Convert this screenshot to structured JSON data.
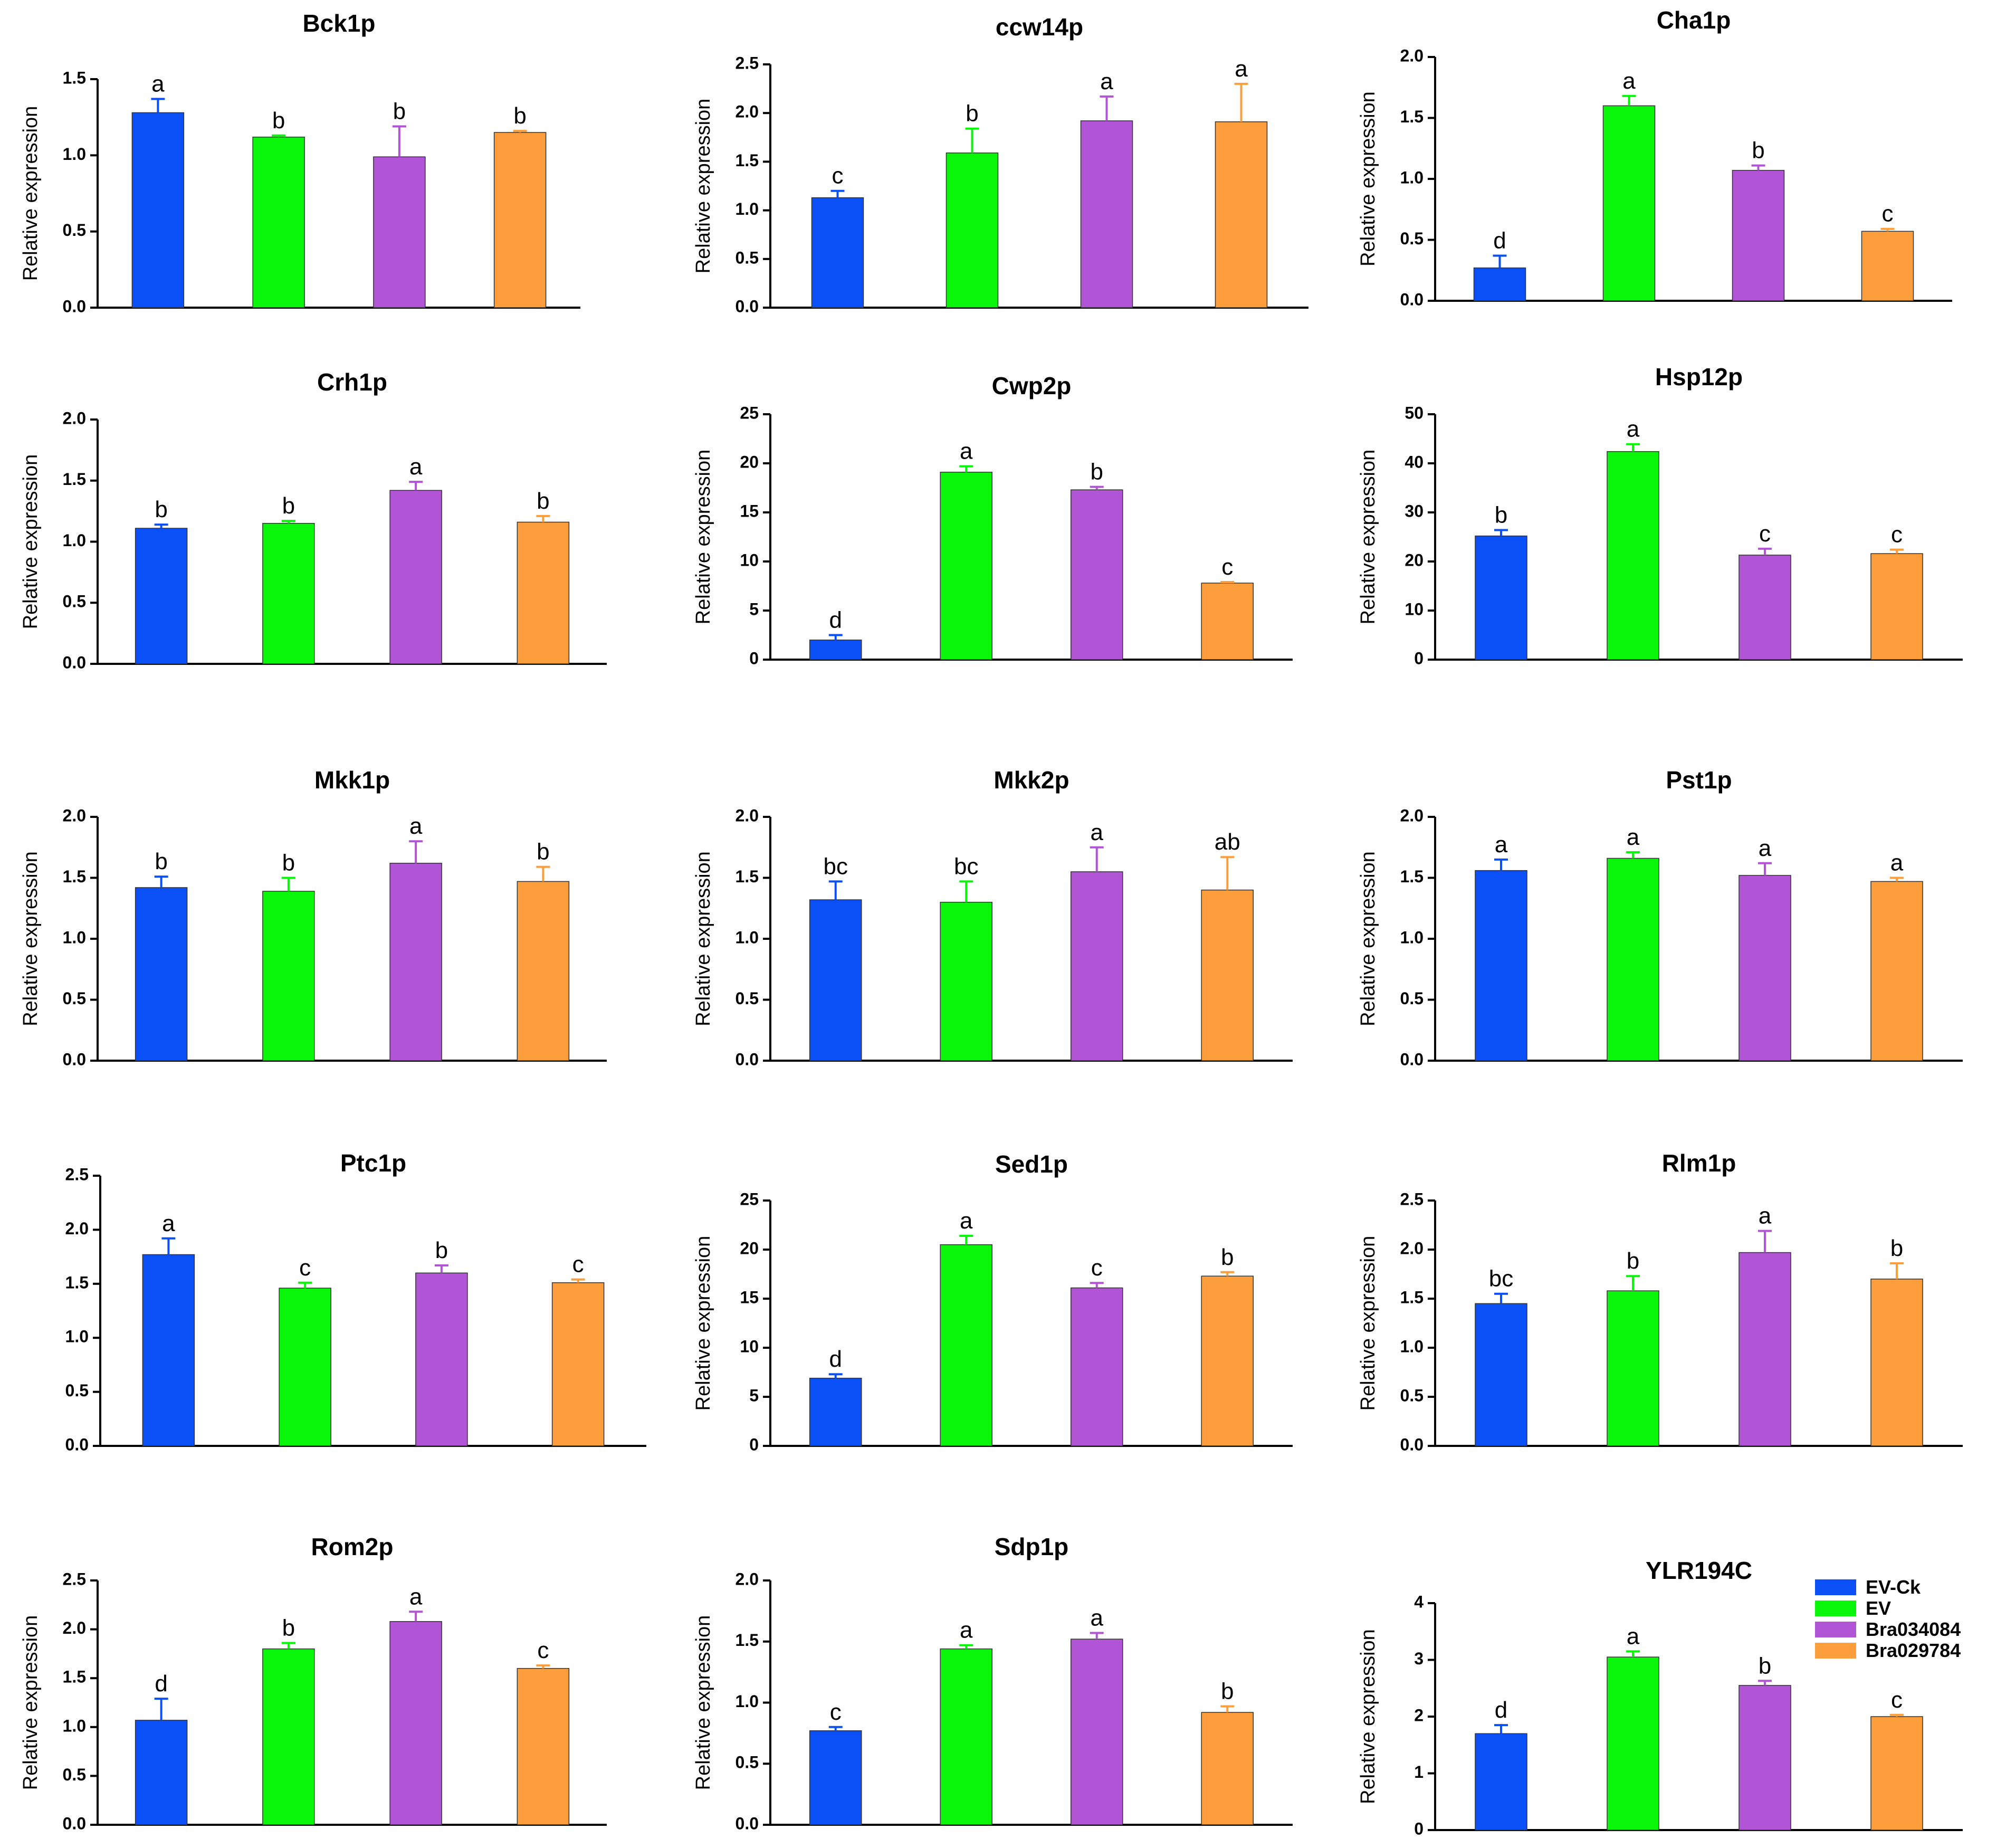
{
  "groups": [
    "EV-Ck",
    "EV",
    "Bra034084",
    "Bra029784"
  ],
  "colors": [
    "#0b4ff7",
    "#09f509",
    "#b155d6",
    "#fc9e3b"
  ],
  "legend": {
    "item_0": "EV-Ck",
    "item_1": "EV",
    "item_2": "Bra034084",
    "item_3": "Bra029784"
  },
  "chart_data": [
    {
      "type": "bar",
      "title": "Bck1p",
      "ylabel": "Relative expression",
      "ylim": [
        0,
        1.5
      ],
      "ticks": [
        "0.0",
        "0.5",
        "1.0",
        "1.5"
      ],
      "categories": [
        "EV-Ck",
        "EV",
        "Bra034084",
        "Bra029784"
      ],
      "values": [
        1.28,
        1.12,
        0.99,
        1.15
      ],
      "errors": [
        0.09,
        0.01,
        0.2,
        0.01
      ],
      "letters": [
        "a",
        "b",
        "b",
        "b"
      ]
    },
    {
      "type": "bar",
      "title": "ccw14p",
      "ylabel": "Relative expression",
      "ylim": [
        0,
        2.5
      ],
      "ticks": [
        "0.0",
        "0.5",
        "1.0",
        "1.5",
        "2.0",
        "2.5"
      ],
      "categories": [
        "EV-Ck",
        "EV",
        "Bra034084",
        "Bra029784"
      ],
      "values": [
        1.13,
        1.59,
        1.92,
        1.91
      ],
      "errors": [
        0.07,
        0.25,
        0.25,
        0.39
      ],
      "letters": [
        "c",
        "b",
        "a",
        "a"
      ]
    },
    {
      "type": "bar",
      "title": "Cha1p",
      "ylabel": "Relative expression",
      "ylim": [
        0,
        2.0
      ],
      "ticks": [
        "0.0",
        "0.5",
        "1.0",
        "1.5",
        "2.0"
      ],
      "categories": [
        "EV-Ck",
        "EV",
        "Bra034084",
        "Bra029784"
      ],
      "values": [
        0.27,
        1.6,
        1.07,
        0.57
      ],
      "errors": [
        0.1,
        0.08,
        0.04,
        0.02
      ],
      "letters": [
        "d",
        "a",
        "b",
        "c"
      ]
    },
    {
      "type": "bar",
      "title": "Crh1p",
      "ylabel": "Relative expression",
      "ylim": [
        0,
        2.0
      ],
      "ticks": [
        "0.0",
        "0.5",
        "1.0",
        "1.5",
        "2.0"
      ],
      "categories": [
        "EV-Ck",
        "EV",
        "Bra034084",
        "Bra029784"
      ],
      "values": [
        1.11,
        1.15,
        1.42,
        1.16
      ],
      "errors": [
        0.03,
        0.02,
        0.07,
        0.05
      ],
      "letters": [
        "b",
        "b",
        "a",
        "b"
      ]
    },
    {
      "type": "bar",
      "title": "Cwp2p",
      "ylabel": "Relative expression",
      "ylim": [
        0,
        25
      ],
      "ticks": [
        "0",
        "5",
        "10",
        "15",
        "20",
        "25"
      ],
      "categories": [
        "EV-Ck",
        "EV",
        "Bra034084",
        "Bra029784"
      ],
      "values": [
        2.0,
        19.1,
        17.3,
        7.8
      ],
      "errors": [
        0.5,
        0.6,
        0.3,
        0.1
      ],
      "letters": [
        "d",
        "a",
        "b",
        "c"
      ]
    },
    {
      "type": "bar",
      "title": "Hsp12p",
      "ylabel": "Relative expression",
      "ylim": [
        0,
        50
      ],
      "ticks": [
        "0",
        "10",
        "20",
        "30",
        "40",
        "50"
      ],
      "categories": [
        "EV-Ck",
        "EV",
        "Bra034084",
        "Bra029784"
      ],
      "values": [
        25.2,
        42.4,
        21.3,
        21.6
      ],
      "errors": [
        1.2,
        1.5,
        1.3,
        0.8
      ],
      "letters": [
        "b",
        "a",
        "c",
        "c"
      ]
    },
    {
      "type": "bar",
      "title": "Mkk1p",
      "ylabel": "Relative expression",
      "ylim": [
        0,
        2.0
      ],
      "ticks": [
        "0.0",
        "0.5",
        "1.0",
        "1.5",
        "2.0"
      ],
      "categories": [
        "EV-Ck",
        "EV",
        "Bra034084",
        "Bra029784"
      ],
      "values": [
        1.42,
        1.39,
        1.62,
        1.47
      ],
      "errors": [
        0.09,
        0.11,
        0.18,
        0.12
      ],
      "letters": [
        "b",
        "b",
        "a",
        "b"
      ]
    },
    {
      "type": "bar",
      "title": "Mkk2p",
      "ylabel": "Relative expression",
      "ylim": [
        0,
        2.0
      ],
      "ticks": [
        "0.0",
        "0.5",
        "1.0",
        "1.5",
        "2.0"
      ],
      "categories": [
        "EV-Ck",
        "EV",
        "Bra034084",
        "Bra029784"
      ],
      "values": [
        1.32,
        1.3,
        1.55,
        1.4
      ],
      "errors": [
        0.15,
        0.17,
        0.2,
        0.27
      ],
      "letters": [
        "bc",
        "bc",
        "a",
        "ab"
      ]
    },
    {
      "type": "bar",
      "title": "Pst1p",
      "ylabel": "Relative expression",
      "ylim": [
        0,
        2.0
      ],
      "ticks": [
        "0.0",
        "0.5",
        "1.0",
        "1.5",
        "2.0"
      ],
      "categories": [
        "EV-Ck",
        "EV",
        "Bra034084",
        "Bra029784"
      ],
      "values": [
        1.56,
        1.66,
        1.52,
        1.47
      ],
      "errors": [
        0.09,
        0.05,
        0.1,
        0.03
      ],
      "letters": [
        "a",
        "a",
        "a",
        "a"
      ]
    },
    {
      "type": "bar",
      "title": "Ptc1p",
      "ylabel": "",
      "ylim": [
        0,
        2.5
      ],
      "ticks": [
        "0.0",
        "0.5",
        "1.0",
        "1.5",
        "2.0",
        "2.5"
      ],
      "categories": [
        "EV-Ck",
        "EV",
        "Bra034084",
        "Bra029784"
      ],
      "values": [
        1.77,
        1.46,
        1.6,
        1.51
      ],
      "errors": [
        0.15,
        0.05,
        0.07,
        0.03
      ],
      "letters": [
        "a",
        "c",
        "b",
        "c"
      ]
    },
    {
      "type": "bar",
      "title": "Sed1p",
      "ylabel": "Relative expression",
      "ylim": [
        0,
        25
      ],
      "ticks": [
        "0",
        "5",
        "10",
        "15",
        "20",
        "25"
      ],
      "categories": [
        "EV-Ck",
        "EV",
        "Bra034084",
        "Bra029784"
      ],
      "values": [
        6.9,
        20.5,
        16.1,
        17.3
      ],
      "errors": [
        0.4,
        0.9,
        0.5,
        0.4
      ],
      "letters": [
        "d",
        "a",
        "c",
        "b"
      ]
    },
    {
      "type": "bar",
      "title": "Rlm1p",
      "ylabel": "Relative expression",
      "ylim": [
        0,
        2.5
      ],
      "ticks": [
        "0.0",
        "0.5",
        "1.0",
        "1.5",
        "2.0",
        "2.5"
      ],
      "categories": [
        "EV-Ck",
        "EV",
        "Bra034084",
        "Bra029784"
      ],
      "values": [
        1.45,
        1.58,
        1.97,
        1.7
      ],
      "errors": [
        0.1,
        0.15,
        0.22,
        0.16
      ],
      "letters": [
        "bc",
        "b",
        "a",
        "b"
      ]
    },
    {
      "type": "bar",
      "title": "Rom2p",
      "ylabel": "Relative expression",
      "ylim": [
        0,
        2.5
      ],
      "ticks": [
        "0.0",
        "0.5",
        "1.0",
        "1.5",
        "2.0",
        "2.5"
      ],
      "categories": [
        "EV-Ck",
        "EV",
        "Bra034084",
        "Bra029784"
      ],
      "values": [
        1.07,
        1.8,
        2.08,
        1.6
      ],
      "errors": [
        0.22,
        0.06,
        0.1,
        0.03
      ],
      "letters": [
        "d",
        "b",
        "a",
        "c"
      ]
    },
    {
      "type": "bar",
      "title": "Sdp1p",
      "ylabel": "Relative expression",
      "ylim": [
        0,
        2.0
      ],
      "ticks": [
        "0.0",
        "0.5",
        "1.0",
        "1.5",
        "2.0"
      ],
      "categories": [
        "EV-Ck",
        "EV",
        "Bra034084",
        "Bra029784"
      ],
      "values": [
        0.77,
        1.44,
        1.52,
        0.92
      ],
      "errors": [
        0.03,
        0.03,
        0.05,
        0.05
      ],
      "letters": [
        "c",
        "a",
        "a",
        "b"
      ]
    },
    {
      "type": "bar",
      "title": "YLR194C",
      "ylabel": "Relative expression",
      "ylim": [
        0,
        4
      ],
      "ticks": [
        "0",
        "1",
        "2",
        "3",
        "4"
      ],
      "categories": [
        "EV-Ck",
        "EV",
        "Bra034084",
        "Bra029784"
      ],
      "values": [
        1.7,
        3.05,
        2.55,
        2.0
      ],
      "errors": [
        0.15,
        0.1,
        0.08,
        0.03
      ],
      "letters": [
        "d",
        "a",
        "b",
        "c"
      ]
    }
  ]
}
